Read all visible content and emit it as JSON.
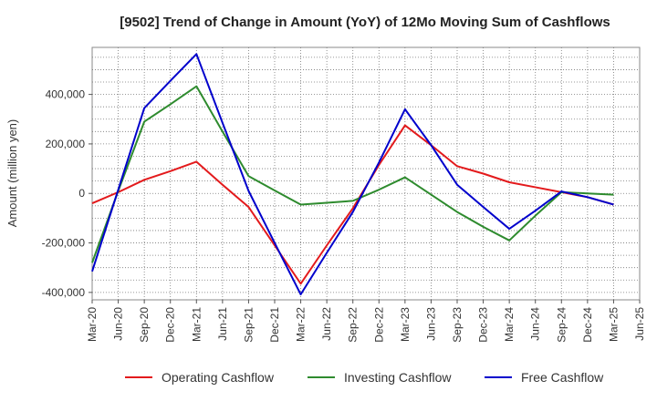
{
  "chart_data": {
    "type": "line",
    "title": "[9502]  Trend of Change in Amount (YoY) of 12Mo Moving Sum of Cashflows",
    "xlabel": "",
    "ylabel": "Amount (million yen)",
    "ylim": [
      -430000,
      590000
    ],
    "yticks": [
      400000,
      200000,
      0,
      -200000,
      -400000
    ],
    "ytick_labels": [
      "400,000",
      "200,000",
      "0",
      "-200,000",
      "-400,000"
    ],
    "categories": [
      "Mar-20",
      "Jun-20",
      "Sep-20",
      "Dec-20",
      "Mar-21",
      "Jun-21",
      "Sep-21",
      "Dec-21",
      "Mar-22",
      "Jun-22",
      "Sep-22",
      "Dec-22",
      "Mar-23",
      "Jun-23",
      "Sep-23",
      "Dec-23",
      "Mar-24",
      "Jun-24",
      "Sep-24",
      "Dec-24",
      "Mar-25",
      "Jun-25"
    ],
    "grid": true,
    "legend_position": "bottom",
    "series": [
      {
        "name": "Operating Cashflow",
        "color": "#e31a1c",
        "values": [
          -40000,
          5000,
          55000,
          90000,
          128000,
          35000,
          -55000,
          -210000,
          -365000,
          -210000,
          -60000,
          115000,
          275000,
          195000,
          110000,
          80000,
          45000,
          25000,
          5000,
          -15000,
          -45000,
          null
        ]
      },
      {
        "name": "Investing Cashflow",
        "color": "#2e8b2e",
        "values": [
          -280000,
          10000,
          290000,
          360000,
          433000,
          250000,
          70000,
          12000,
          -45000,
          -38000,
          -30000,
          15000,
          65000,
          -5000,
          -75000,
          -135000,
          -190000,
          -90000,
          5000,
          0,
          -5000,
          null
        ]
      },
      {
        "name": "Free Cashflow",
        "color": "#0000cc",
        "values": [
          -315000,
          15000,
          345000,
          455000,
          563000,
          285000,
          10000,
          -200000,
          -408000,
          -240000,
          -75000,
          125000,
          340000,
          195000,
          35000,
          -55000,
          -143000,
          -70000,
          8000,
          -15000,
          -45000,
          null
        ]
      }
    ]
  }
}
